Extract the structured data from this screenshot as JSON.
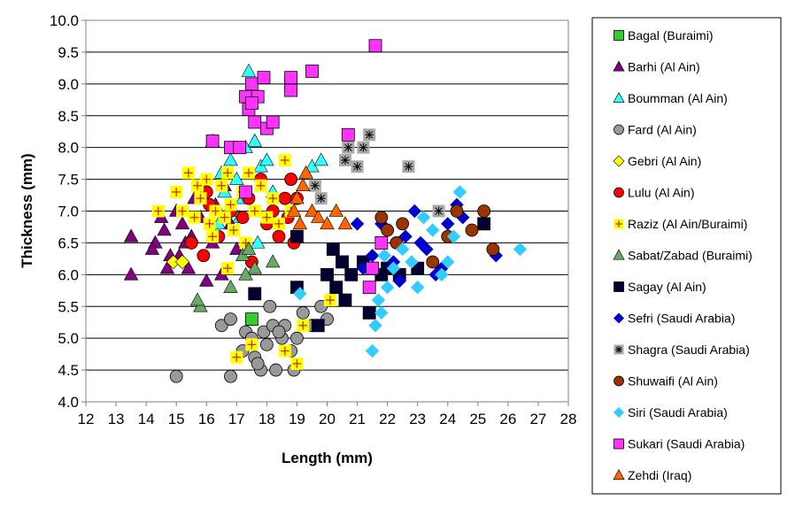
{
  "chart_data": {
    "type": "scatter",
    "title": "",
    "xlabel": "Length (mm)",
    "ylabel": "Thickness (mm)",
    "xlim": [
      12,
      28
    ],
    "ylim": [
      4.0,
      10.0
    ],
    "x_ticks": [
      "12",
      "13",
      "14",
      "15",
      "16",
      "17",
      "18",
      "19",
      "20",
      "21",
      "22",
      "23",
      "24",
      "25",
      "26",
      "27",
      "28"
    ],
    "y_ticks": [
      "4.0",
      "4.5",
      "5.0",
      "5.5",
      "6.0",
      "6.5",
      "7.0",
      "7.5",
      "8.0",
      "8.5",
      "9.0",
      "9.5",
      "10.0"
    ],
    "grid": "horizontal",
    "legend_position": "right",
    "series": [
      {
        "name": "Bagal (Buraimi)",
        "marker": "square",
        "color": "#33cc33",
        "points": [
          [
            17.5,
            5.3
          ]
        ]
      },
      {
        "name": "Barhi (Al Ain)",
        "marker": "triangle",
        "color": "#800080",
        "points": [
          [
            13.5,
            6.6
          ],
          [
            13.5,
            6.0
          ],
          [
            14.3,
            6.5
          ],
          [
            14.5,
            6.9
          ],
          [
            14.6,
            6.7
          ],
          [
            14.7,
            6.1
          ],
          [
            14.8,
            6.3
          ],
          [
            15.0,
            7.0
          ],
          [
            15.2,
            6.8
          ],
          [
            15.3,
            6.5
          ],
          [
            15.4,
            6.1
          ],
          [
            15.5,
            6.6
          ],
          [
            15.6,
            7.2
          ],
          [
            15.8,
            6.9
          ],
          [
            16.0,
            5.9
          ],
          [
            16.2,
            6.5
          ],
          [
            16.3,
            7.1
          ],
          [
            16.5,
            6.0
          ],
          [
            16.8,
            6.8
          ],
          [
            17.0,
            6.4
          ],
          [
            15.1,
            6.3
          ],
          [
            14.2,
            6.4
          ],
          [
            16.6,
            7.4
          ]
        ]
      },
      {
        "name": "Boumman (Al Ain)",
        "marker": "triangle",
        "color": "#33ffff",
        "points": [
          [
            16.2,
            8.1
          ],
          [
            16.5,
            7.6
          ],
          [
            16.8,
            7.8
          ],
          [
            17.0,
            7.5
          ],
          [
            17.2,
            7.2
          ],
          [
            17.3,
            8.0
          ],
          [
            17.4,
            9.2
          ],
          [
            17.5,
            8.7
          ],
          [
            17.6,
            8.1
          ],
          [
            17.8,
            7.7
          ],
          [
            18.0,
            7.8
          ],
          [
            18.2,
            7.3
          ],
          [
            16.9,
            7.0
          ],
          [
            16.4,
            6.8
          ],
          [
            17.1,
            6.9
          ],
          [
            16.6,
            7.3
          ],
          [
            19.5,
            7.7
          ],
          [
            19.8,
            7.8
          ],
          [
            17.7,
            6.5
          ],
          [
            16.3,
            6.6
          ]
        ]
      },
      {
        "name": "Fard (Al Ain)",
        "marker": "circle",
        "color": "#999999",
        "points": [
          [
            15.0,
            4.4
          ],
          [
            16.5,
            5.2
          ],
          [
            16.8,
            5.3
          ],
          [
            16.8,
            4.4
          ],
          [
            17.2,
            4.8
          ],
          [
            17.3,
            5.1
          ],
          [
            17.5,
            5.0
          ],
          [
            17.6,
            4.7
          ],
          [
            17.8,
            4.5
          ],
          [
            17.9,
            5.1
          ],
          [
            18.0,
            4.9
          ],
          [
            18.1,
            5.5
          ],
          [
            18.2,
            5.2
          ],
          [
            18.3,
            4.5
          ],
          [
            18.5,
            5.0
          ],
          [
            18.6,
            5.2
          ],
          [
            18.8,
            4.8
          ],
          [
            18.9,
            4.5
          ],
          [
            19.0,
            5.0
          ],
          [
            19.2,
            5.4
          ],
          [
            19.5,
            5.2
          ],
          [
            19.8,
            5.5
          ],
          [
            20.0,
            5.3
          ],
          [
            17.7,
            4.6
          ],
          [
            18.4,
            5.1
          ]
        ]
      },
      {
        "name": "Gebri (Al Ain)",
        "marker": "diamond",
        "color": "#ffff00",
        "points": [
          [
            14.9,
            6.2
          ],
          [
            15.2,
            6.2
          ]
        ]
      },
      {
        "name": "Lulu (Al Ain)",
        "marker": "circle",
        "color": "#ff0000",
        "points": [
          [
            15.5,
            6.5
          ],
          [
            15.9,
            6.3
          ],
          [
            16.1,
            7.1
          ],
          [
            16.4,
            6.6
          ],
          [
            16.8,
            7.0
          ],
          [
            17.2,
            6.9
          ],
          [
            17.5,
            6.2
          ],
          [
            17.8,
            7.5
          ],
          [
            18.0,
            6.8
          ],
          [
            18.2,
            7.0
          ],
          [
            18.4,
            6.6
          ],
          [
            18.6,
            7.2
          ],
          [
            18.7,
            6.9
          ],
          [
            18.8,
            7.5
          ],
          [
            19.0,
            7.2
          ],
          [
            18.9,
            6.5
          ],
          [
            16.0,
            7.3
          ],
          [
            17.4,
            7.2
          ]
        ]
      },
      {
        "name": "Raziz (Al Ain/Buraimi)",
        "marker": "square-plus",
        "color": "#ffff00",
        "points": [
          [
            14.4,
            7.0
          ],
          [
            15.0,
            7.3
          ],
          [
            15.4,
            7.6
          ],
          [
            15.6,
            6.9
          ],
          [
            15.8,
            7.2
          ],
          [
            16.0,
            7.5
          ],
          [
            16.1,
            6.8
          ],
          [
            16.3,
            7.0
          ],
          [
            16.5,
            7.4
          ],
          [
            16.7,
            7.6
          ],
          [
            16.8,
            7.1
          ],
          [
            16.9,
            6.7
          ],
          [
            17.0,
            8.0
          ],
          [
            17.2,
            7.3
          ],
          [
            17.4,
            7.6
          ],
          [
            17.6,
            7.0
          ],
          [
            17.8,
            7.4
          ],
          [
            18.0,
            6.9
          ],
          [
            18.2,
            7.2
          ],
          [
            18.4,
            6.8
          ],
          [
            18.6,
            7.8
          ],
          [
            18.8,
            7.0
          ],
          [
            16.7,
            6.1
          ],
          [
            17.0,
            4.7
          ],
          [
            17.5,
            4.9
          ],
          [
            18.6,
            4.8
          ],
          [
            19.0,
            4.6
          ],
          [
            19.2,
            5.2
          ],
          [
            20.1,
            5.6
          ],
          [
            15.2,
            7.0
          ],
          [
            16.2,
            6.6
          ],
          [
            17.3,
            6.5
          ],
          [
            15.7,
            7.4
          ],
          [
            16.6,
            6.9
          ]
        ]
      },
      {
        "name": "Sabat/Zabad (Buraimi)",
        "marker": "triangle",
        "color": "#66aa66",
        "points": [
          [
            15.8,
            5.5
          ],
          [
            15.7,
            5.6
          ],
          [
            16.8,
            5.8
          ],
          [
            17.2,
            6.3
          ],
          [
            17.4,
            6.4
          ],
          [
            17.6,
            6.1
          ],
          [
            18.2,
            6.2
          ],
          [
            17.3,
            6.0
          ]
        ]
      },
      {
        "name": "Sagay (Al Ain)",
        "marker": "square",
        "color": "#000033",
        "points": [
          [
            17.6,
            5.7
          ],
          [
            19.0,
            6.6
          ],
          [
            19.0,
            5.8
          ],
          [
            19.7,
            5.2
          ],
          [
            20.0,
            6.0
          ],
          [
            20.3,
            5.8
          ],
          [
            20.5,
            6.2
          ],
          [
            20.6,
            5.6
          ],
          [
            20.8,
            6.0
          ],
          [
            21.2,
            6.2
          ],
          [
            21.4,
            5.4
          ],
          [
            21.8,
            6.0
          ],
          [
            22.0,
            6.1
          ],
          [
            22.4,
            6.0
          ],
          [
            23.0,
            6.1
          ],
          [
            25.2,
            6.8
          ],
          [
            20.2,
            6.4
          ]
        ]
      },
      {
        "name": "Sefri (Saudi Arabia)",
        "marker": "diamond",
        "color": "#0000cc",
        "points": [
          [
            21.0,
            6.8
          ],
          [
            21.2,
            6.1
          ],
          [
            21.5,
            6.3
          ],
          [
            21.8,
            6.8
          ],
          [
            22.2,
            6.2
          ],
          [
            22.4,
            5.9
          ],
          [
            22.6,
            6.6
          ],
          [
            22.9,
            7.0
          ],
          [
            23.1,
            6.5
          ],
          [
            23.3,
            6.4
          ],
          [
            23.6,
            6.0
          ],
          [
            23.8,
            6.1
          ],
          [
            24.0,
            6.8
          ],
          [
            24.3,
            7.1
          ],
          [
            25.6,
            6.3
          ],
          [
            24.5,
            6.9
          ]
        ]
      },
      {
        "name": "Shagra (Saudi Arabia)",
        "marker": "square-star",
        "color": "#aaaaaa",
        "points": [
          [
            19.6,
            7.4
          ],
          [
            19.8,
            7.2
          ],
          [
            20.6,
            7.8
          ],
          [
            20.7,
            8.0
          ],
          [
            21.0,
            7.7
          ],
          [
            21.2,
            8.0
          ],
          [
            21.4,
            8.2
          ],
          [
            22.7,
            7.7
          ],
          [
            23.7,
            7.0
          ]
        ]
      },
      {
        "name": "Shuwaifi (Al Ain)",
        "marker": "circle",
        "color": "#993300",
        "points": [
          [
            21.8,
            6.9
          ],
          [
            22.0,
            6.7
          ],
          [
            22.5,
            6.8
          ],
          [
            23.5,
            6.2
          ],
          [
            24.0,
            6.6
          ],
          [
            24.3,
            7.0
          ],
          [
            24.8,
            6.7
          ],
          [
            25.2,
            7.0
          ],
          [
            25.5,
            6.4
          ],
          [
            22.3,
            6.5
          ]
        ]
      },
      {
        "name": "Siri (Saudi Arabia)",
        "marker": "diamond",
        "color": "#33ccff",
        "points": [
          [
            21.5,
            4.8
          ],
          [
            21.6,
            5.2
          ],
          [
            21.8,
            5.4
          ],
          [
            21.9,
            6.3
          ],
          [
            22.0,
            5.8
          ],
          [
            22.2,
            6.1
          ],
          [
            22.5,
            6.4
          ],
          [
            22.8,
            6.2
          ],
          [
            23.0,
            5.8
          ],
          [
            23.2,
            6.9
          ],
          [
            23.5,
            6.7
          ],
          [
            23.8,
            6.0
          ],
          [
            24.0,
            6.2
          ],
          [
            24.2,
            6.6
          ],
          [
            24.4,
            7.3
          ],
          [
            26.4,
            6.4
          ],
          [
            19.1,
            5.7
          ],
          [
            21.7,
            5.6
          ]
        ]
      },
      {
        "name": "Sukari (Saudi Arabia)",
        "marker": "square",
        "color": "#ff33ff",
        "points": [
          [
            16.2,
            8.1
          ],
          [
            16.8,
            8.0
          ],
          [
            17.1,
            8.0
          ],
          [
            17.3,
            8.8
          ],
          [
            17.4,
            8.6
          ],
          [
            17.5,
            9.0
          ],
          [
            17.6,
            8.4
          ],
          [
            17.7,
            8.8
          ],
          [
            17.9,
            9.1
          ],
          [
            18.0,
            8.3
          ],
          [
            18.2,
            8.4
          ],
          [
            18.8,
            9.0
          ],
          [
            18.8,
            9.1
          ],
          [
            18.8,
            8.9
          ],
          [
            19.5,
            9.2
          ],
          [
            20.7,
            8.2
          ],
          [
            21.6,
            9.6
          ],
          [
            21.8,
            6.5
          ],
          [
            21.5,
            6.1
          ],
          [
            21.4,
            5.8
          ],
          [
            17.5,
            8.7
          ],
          [
            17.3,
            7.3
          ]
        ]
      },
      {
        "name": "Zehdi (Iraq)",
        "marker": "triangle",
        "color": "#ff6600",
        "points": [
          [
            19.0,
            7.2
          ],
          [
            19.2,
            7.4
          ],
          [
            19.3,
            7.6
          ],
          [
            19.5,
            7.0
          ],
          [
            19.7,
            6.9
          ],
          [
            20.0,
            6.8
          ],
          [
            20.3,
            7.0
          ],
          [
            20.6,
            6.8
          ],
          [
            18.9,
            7.0
          ],
          [
            19.1,
            6.8
          ]
        ]
      }
    ]
  }
}
